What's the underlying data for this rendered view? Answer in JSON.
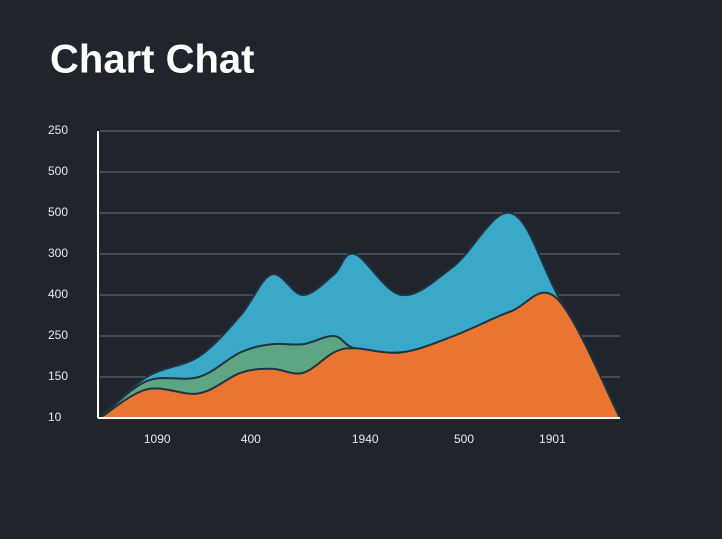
{
  "chart_data": {
    "type": "area",
    "title": "Chart Chat",
    "x": [
      0,
      0.9,
      1.9,
      2.7,
      3.3,
      3.9,
      4.5,
      4.9,
      5.8,
      6.8,
      7.9,
      8.8,
      10
    ],
    "series": [
      {
        "color": "#3aa9c9",
        "values": [
          0,
          1.0,
          1.5,
          2.5,
          3.5,
          3.0,
          3.5,
          4.0,
          3.0,
          3.7,
          5.0,
          3.0,
          0
        ]
      },
      {
        "color": "#5ea583",
        "values": [
          0,
          0.9,
          1.0,
          1.6,
          1.8,
          1.8,
          2.0,
          1.7,
          1.6,
          1.9,
          2.3,
          2.7,
          0
        ]
      },
      {
        "color": "#ea7530",
        "values": [
          0,
          0.7,
          0.6,
          1.1,
          1.2,
          1.1,
          1.6,
          1.7,
          1.6,
          2.0,
          2.6,
          2.9,
          0
        ]
      }
    ],
    "xlim": [
      0,
      10
    ],
    "xticks": [
      {
        "value": 1.1,
        "label": "1090"
      },
      {
        "value": 2.9,
        "label": "400"
      },
      {
        "value": 5.1,
        "label": "1940"
      },
      {
        "value": 7.0,
        "label": "500"
      },
      {
        "value": 8.7,
        "label": "1901"
      }
    ],
    "ylim": [
      0,
      7
    ],
    "yticks": [
      {
        "value": 0,
        "label": "10"
      },
      {
        "value": 1,
        "label": "150"
      },
      {
        "value": 2,
        "label": "250"
      },
      {
        "value": 3,
        "label": "400"
      },
      {
        "value": 4,
        "label": "300"
      },
      {
        "value": 5,
        "label": "500"
      },
      {
        "value": 6,
        "label": "500"
      },
      {
        "value": 7,
        "label": "250"
      }
    ],
    "grid": true
  }
}
